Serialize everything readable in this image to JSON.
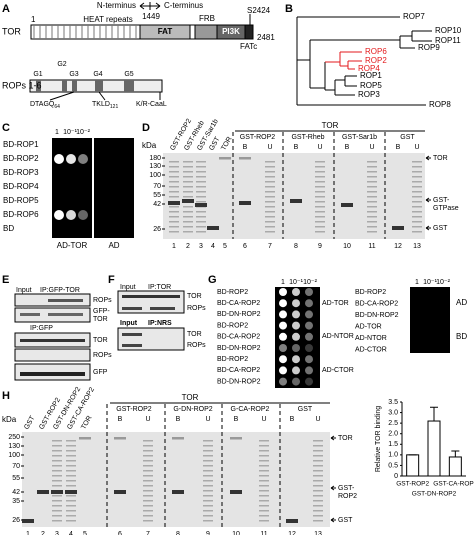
{
  "panel_a": {
    "label": "A",
    "protein": "TOR",
    "start": 1,
    "n_terminus": "N-terminus",
    "c_terminus": "C-terminus",
    "split": 1449,
    "heat": "HEAT repeats",
    "frb": "FRB",
    "site": "S2424",
    "fat": "FAT",
    "pi3k": "PI3K",
    "end": 2481,
    "fatc": "FATc",
    "rops": "ROPs 1-6",
    "g": [
      "G1",
      "G2",
      "G3",
      "G4",
      "G5"
    ],
    "motifs": [
      {
        "text": "DTAGQ",
        "sub": "64"
      },
      {
        "text": "TKLD",
        "sub": "121"
      },
      {
        "text": "K/R-CaaL"
      }
    ]
  },
  "panel_b": {
    "label": "B",
    "highlight_color": "#e31a1c",
    "leaves": [
      {
        "name": "ROP7",
        "highlight": false
      },
      {
        "name": "ROP10",
        "highlight": false
      },
      {
        "name": "ROP11",
        "highlight": false
      },
      {
        "name": "ROP9",
        "highlight": false
      },
      {
        "name": "ROP6",
        "highlight": true
      },
      {
        "name": "ROP2",
        "highlight": true
      },
      {
        "name": "ROP4",
        "highlight": true
      },
      {
        "name": "ROP1",
        "highlight": false
      },
      {
        "name": "ROP5",
        "highlight": false
      },
      {
        "name": "ROP3",
        "highlight": false
      },
      {
        "name": "ROP8",
        "highlight": false
      }
    ]
  },
  "panel_c": {
    "label": "C",
    "dilutions": [
      "1",
      "10⁻¹",
      "10⁻²"
    ],
    "rows": [
      "BD-ROP1",
      "BD-ROP2",
      "BD-ROP3",
      "BD-ROP4",
      "BD-ROP5",
      "BD-ROP6",
      "BD"
    ],
    "columns": [
      "AD-TOR",
      "AD"
    ]
  },
  "panel_d": {
    "label": "D",
    "unit": "kDa",
    "markers": [
      180,
      130,
      100,
      70,
      55,
      42,
      26
    ],
    "lanes": [
      "GST-ROP2",
      "GST-Rheb",
      "GST-Sar1b",
      "GST",
      "TOR"
    ],
    "pulldown": "TOR",
    "groups": [
      "GST-ROP2",
      "GST-Rheb",
      "GST-Sar1b",
      "GST"
    ],
    "fractions": [
      "B",
      "U"
    ],
    "lane_numbers": [
      1,
      2,
      3,
      4,
      5,
      6,
      7,
      8,
      9,
      10,
      11,
      12,
      13
    ],
    "bands": [
      "TOR",
      "GST-",
      "GTPase",
      "GST"
    ]
  },
  "panel_e": {
    "label": "E",
    "top_header": [
      "Input",
      "IP:GFP-TOR"
    ],
    "top_bands": [
      "ROPs",
      "GFP-",
      "TOR"
    ],
    "bottom_header": "IP:GFP",
    "bottom_bands": [
      "TOR",
      "ROPs",
      "GFP"
    ]
  },
  "panel_f": {
    "label": "F",
    "top_header": [
      "Input",
      "IP:TOR"
    ],
    "top_bands": [
      "TOR",
      "ROPs"
    ],
    "bottom_header": [
      "Input",
      "IP:NRS"
    ],
    "bottom_bands": [
      "TOR",
      "ROPs"
    ]
  },
  "panel_g": {
    "label": "G",
    "dilutions": [
      "1",
      "10⁻¹",
      "10⁻²"
    ],
    "rows": [
      "BD-ROP2",
      "BD-CA-ROP2",
      "BD-DN-ROP2",
      "BD-ROP2",
      "BD-CA-ROP2",
      "BD-DN-ROP2",
      "BD-ROP2",
      "BD-CA-ROP2",
      "BD-DN-ROP2"
    ],
    "ad": [
      "AD-TOR",
      "AD-NTOR",
      "AD-CTOR"
    ],
    "control_rows": [
      "BD-ROP2",
      "BD-CA-ROP2",
      "BD-DN-ROP2",
      "AD-TOR",
      "AD-NTOR",
      "AD-CTOR"
    ],
    "controls": [
      "AD",
      "BD"
    ]
  },
  "panel_h": {
    "label": "H",
    "unit": "kDa",
    "markers": [
      250,
      130,
      100,
      70,
      55,
      42,
      35,
      26
    ],
    "lanes": [
      "GST",
      "GST-ROP2",
      "GST-DN-ROP2",
      "GST-CA-ROP2",
      "TOR"
    ],
    "pulldown": "TOR",
    "groups": [
      "GST-ROP2",
      "G-DN-ROP2",
      "G-CA-ROP2",
      "GST"
    ],
    "fractions": [
      "B",
      "U"
    ],
    "lane_numbers": [
      1,
      2,
      3,
      4,
      5,
      6,
      7,
      8,
      9,
      10,
      11,
      12,
      13
    ],
    "bands": [
      "TOR",
      "GST-",
      "ROP2",
      "GST"
    ]
  },
  "chart_data": {
    "type": "bar",
    "y_label": "Relative TOR binding",
    "categories": [
      "GST-ROP2",
      "GST-DN-ROP2",
      "GST-CA-ROP2"
    ],
    "values": [
      1,
      2.6,
      0.9
    ],
    "errors": [
      0,
      0.65,
      0.28
    ],
    "color": "#ffffff",
    "ylim": [
      0,
      3.5
    ],
    "yticks": [
      0,
      0.5,
      {
        "value": 1,
        "label": "1.0"
      },
      1.5,
      {
        "value": 2,
        "label": "2.0"
      },
      2.5,
      {
        "value": 3,
        "label": "3.0"
      },
      3.5
    ]
  }
}
